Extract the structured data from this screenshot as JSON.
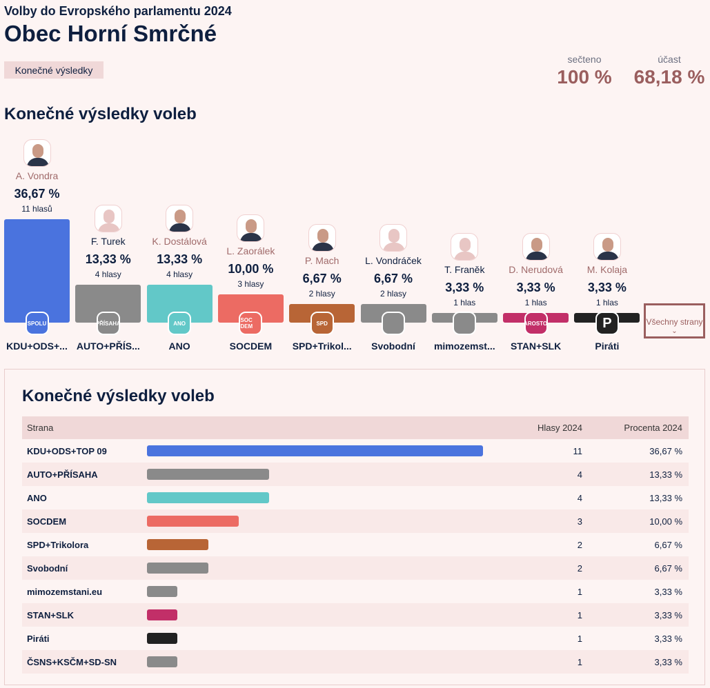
{
  "header": {
    "subtitle": "Volby do Evropského parlamentu 2024",
    "title": "Obec Horní Smrčné",
    "badge": "Konečné výsledky",
    "counted_label": "sečteno",
    "counted_value": "100 %",
    "turnout_label": "účast",
    "turnout_value": "68,18 %"
  },
  "section_title": "Konečné výsledky voleb",
  "all_parties_button": "Všechny strany",
  "parties": [
    {
      "short": "KDU+ODS+...",
      "name": "KDU+ODS+TOP 09",
      "candidate": "A. Vondra",
      "elected": true,
      "photo": true,
      "pct": 36.67,
      "pct_label": "36,67 %",
      "votes": 11,
      "votes_label": "11 hlasů",
      "color": "#4a73de",
      "logo": "SPOLU"
    },
    {
      "short": "AUTO+PŘÍS...",
      "name": "AUTO+PŘÍSAHA",
      "candidate": "F. Turek",
      "elected": false,
      "photo": false,
      "pct": 13.33,
      "pct_label": "13,33 %",
      "votes": 4,
      "votes_label": "4 hlasy",
      "color": "#8a8a8a",
      "logo": "PŘÍSAHA"
    },
    {
      "short": "ANO",
      "name": "ANO",
      "candidate": "K. Dostálová",
      "elected": true,
      "photo": true,
      "pct": 13.33,
      "pct_label": "13,33 %",
      "votes": 4,
      "votes_label": "4 hlasy",
      "color": "#62c8c8",
      "logo": "ANO"
    },
    {
      "short": "SOCDEM",
      "name": "SOCDEM",
      "candidate": "L. Zaorálek",
      "elected": true,
      "photo": true,
      "pct": 10.0,
      "pct_label": "10,00 %",
      "votes": 3,
      "votes_label": "3 hlasy",
      "color": "#ec6b63",
      "logo": "SOC DEM"
    },
    {
      "short": "SPD+Trikol...",
      "name": "SPD+Trikolora",
      "candidate": "P. Mach",
      "elected": true,
      "photo": true,
      "pct": 6.67,
      "pct_label": "6,67 %",
      "votes": 2,
      "votes_label": "2 hlasy",
      "color": "#b86536",
      "logo": "SPD"
    },
    {
      "short": "Svobodní",
      "name": "Svobodní",
      "candidate": "L. Vondráček",
      "elected": false,
      "photo": false,
      "pct": 6.67,
      "pct_label": "6,67 %",
      "votes": 2,
      "votes_label": "2 hlasy",
      "color": "#8a8a8a",
      "logo": ""
    },
    {
      "short": "mimozemst...",
      "name": "mimozemstani.eu",
      "candidate": "T. Franěk",
      "elected": false,
      "photo": false,
      "pct": 3.33,
      "pct_label": "3,33 %",
      "votes": 1,
      "votes_label": "1 hlas",
      "color": "#8a8a8a",
      "logo": ""
    },
    {
      "short": "STAN+SLK",
      "name": "STAN+SLK",
      "candidate": "D. Nerudová",
      "elected": true,
      "photo": true,
      "pct": 3.33,
      "pct_label": "3,33 %",
      "votes": 1,
      "votes_label": "1 hlas",
      "color": "#c22f68",
      "logo": "STAROSTOVÉ"
    },
    {
      "short": "Piráti",
      "name": "Piráti",
      "candidate": "M. Kolaja",
      "elected": true,
      "photo": true,
      "pct": 3.33,
      "pct_label": "3,33 %",
      "votes": 1,
      "votes_label": "1 hlas",
      "color": "#222222",
      "logo": "P"
    }
  ],
  "table": {
    "title": "Konečné výsledky voleb",
    "headers": [
      "Strana",
      "",
      "Hlasy 2024",
      "Procenta 2024"
    ],
    "rows": [
      {
        "name": "KDU+ODS+TOP 09",
        "votes": "11",
        "pct_label": "36,67 %",
        "pct": 36.67,
        "color": "#4a73de"
      },
      {
        "name": "AUTO+PŘÍSAHA",
        "votes": "4",
        "pct_label": "13,33 %",
        "pct": 13.33,
        "color": "#8a8a8a"
      },
      {
        "name": "ANO",
        "votes": "4",
        "pct_label": "13,33 %",
        "pct": 13.33,
        "color": "#62c8c8"
      },
      {
        "name": "SOCDEM",
        "votes": "3",
        "pct_label": "10,00 %",
        "pct": 10.0,
        "color": "#ec6b63"
      },
      {
        "name": "SPD+Trikolora",
        "votes": "2",
        "pct_label": "6,67 %",
        "pct": 6.67,
        "color": "#b86536"
      },
      {
        "name": "Svobodní",
        "votes": "2",
        "pct_label": "6,67 %",
        "pct": 6.67,
        "color": "#8a8a8a"
      },
      {
        "name": "mimozemstani.eu",
        "votes": "1",
        "pct_label": "3,33 %",
        "pct": 3.33,
        "color": "#8a8a8a"
      },
      {
        "name": "STAN+SLK",
        "votes": "1",
        "pct_label": "3,33 %",
        "pct": 3.33,
        "color": "#c22f68"
      },
      {
        "name": "Piráti",
        "votes": "1",
        "pct_label": "3,33 %",
        "pct": 3.33,
        "color": "#222222"
      },
      {
        "name": "ČSNS+KSČM+SD-SN",
        "votes": "1",
        "pct_label": "3,33 %",
        "pct": 3.33,
        "color": "#8a8a8a"
      }
    ]
  }
}
